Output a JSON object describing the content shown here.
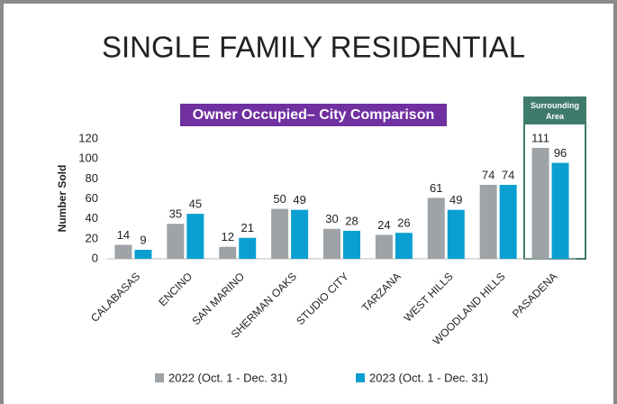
{
  "chart_data": {
    "type": "bar",
    "title": "SINGLE FAMILY RESIDENTIAL",
    "subtitle": "Owner Occupied– City Comparison",
    "y_label": "Number Sold",
    "annotation": "Surrounding Area",
    "categories": [
      "CALABASAS",
      "ENCINO",
      "SAN MARINO",
      "SHERMAN OAKS",
      "STUDIO CITY",
      "TARZANA",
      "WEST HILLS",
      "WOODLAND HILLS",
      "PASADENA"
    ],
    "series": [
      {
        "name": "2022 (Oct. 1 - Dec. 31)",
        "color": "#9ea3a8",
        "values": [
          14,
          35,
          12,
          50,
          30,
          24,
          61,
          74,
          111
        ]
      },
      {
        "name": "2023 (Oct. 1 - Dec. 31)",
        "color": "#0a9fd0",
        "values": [
          9,
          45,
          21,
          49,
          28,
          26,
          49,
          74,
          96
        ]
      }
    ],
    "ylim": [
      0,
      120
    ],
    "yticks": [
      0,
      20,
      40,
      60,
      80,
      100,
      120
    ],
    "grid": false
  }
}
